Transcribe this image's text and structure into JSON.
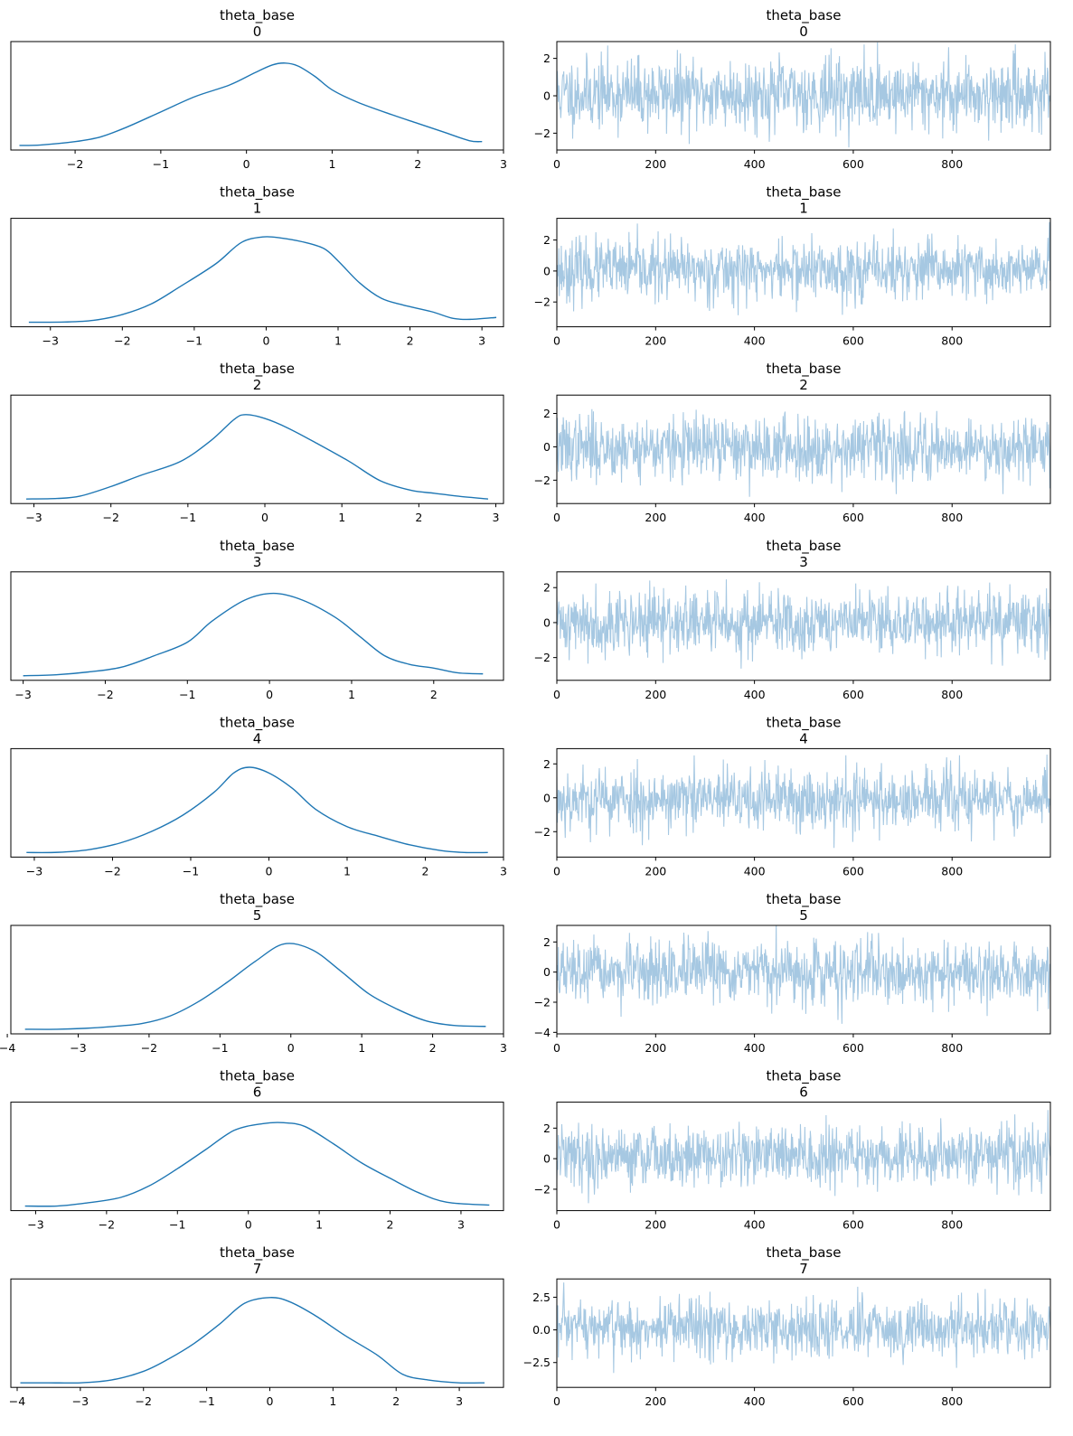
{
  "figure": {
    "kind": "trace-plot",
    "kde_color": "#1f77b4",
    "trace_color": "#a6c8e2",
    "axis_color": "#000000",
    "background": "#ffffff"
  },
  "chart_data": [
    {
      "type": "line",
      "variant": "kde",
      "title": "theta_base",
      "subtitle": "0",
      "xlim": [
        -2.75,
        3.0
      ],
      "xticks": [
        -2,
        -1,
        0,
        1,
        2,
        3
      ],
      "x": [
        -2.65,
        -2.4,
        -2.0,
        -1.7,
        -1.4,
        -1.0,
        -0.6,
        -0.2,
        0.1,
        0.3,
        0.45,
        0.6,
        0.8,
        1.0,
        1.3,
        1.7,
        2.0,
        2.3,
        2.6,
        2.75
      ],
      "y": [
        0.01,
        0.015,
        0.05,
        0.1,
        0.2,
        0.36,
        0.52,
        0.64,
        0.77,
        0.85,
        0.87,
        0.84,
        0.73,
        0.59,
        0.46,
        0.33,
        0.24,
        0.15,
        0.06,
        0.05
      ]
    },
    {
      "type": "line",
      "variant": "trace",
      "title": "theta_base",
      "subtitle": "0",
      "xlim": [
        0,
        999
      ],
      "xticks": [
        0,
        200,
        400,
        600,
        800
      ],
      "ylim": [
        -2.9,
        2.9
      ],
      "yticks": [
        -2,
        0,
        2
      ],
      "ytick_labels": [
        "−2",
        "0",
        "2"
      ],
      "n": 1000,
      "seed": 11,
      "scale": 0.95,
      "mean": 0.1
    },
    {
      "type": "line",
      "variant": "kde",
      "title": "theta_base",
      "subtitle": "1",
      "xlim": [
        -3.55,
        3.3
      ],
      "xticks": [
        -3,
        -2,
        -1,
        0,
        1,
        2,
        3
      ],
      "x": [
        -3.3,
        -2.8,
        -2.4,
        -2.0,
        -1.6,
        -1.2,
        -0.7,
        -0.35,
        -0.05,
        0.2,
        0.5,
        0.8,
        1.0,
        1.3,
        1.6,
        1.9,
        2.3,
        2.6,
        2.85,
        3.2
      ],
      "y": [
        0.01,
        0.012,
        0.03,
        0.09,
        0.2,
        0.38,
        0.62,
        0.84,
        0.9,
        0.89,
        0.85,
        0.78,
        0.65,
        0.42,
        0.26,
        0.19,
        0.12,
        0.05,
        0.04,
        0.06
      ]
    },
    {
      "type": "line",
      "variant": "trace",
      "title": "theta_base",
      "subtitle": "1",
      "xlim": [
        0,
        999
      ],
      "xticks": [
        0,
        200,
        400,
        600,
        800
      ],
      "ylim": [
        -3.6,
        3.4
      ],
      "yticks": [
        -2,
        0,
        2
      ],
      "ytick_labels": [
        "−2",
        "0",
        "2"
      ],
      "n": 1000,
      "seed": 23,
      "scale": 0.98,
      "mean": 0.05
    },
    {
      "type": "line",
      "variant": "kde",
      "title": "theta_base",
      "subtitle": "2",
      "xlim": [
        -3.3,
        3.1
      ],
      "xticks": [
        -3,
        -2,
        -1,
        0,
        1,
        2,
        3
      ],
      "x": [
        -3.1,
        -2.7,
        -2.4,
        -2.0,
        -1.6,
        -1.1,
        -0.7,
        -0.4,
        -0.25,
        0.0,
        0.3,
        0.7,
        1.1,
        1.5,
        1.9,
        2.2,
        2.5,
        2.9
      ],
      "y": [
        0.01,
        0.015,
        0.04,
        0.14,
        0.26,
        0.4,
        0.62,
        0.84,
        0.89,
        0.85,
        0.75,
        0.58,
        0.4,
        0.2,
        0.1,
        0.07,
        0.04,
        0.01
      ]
    },
    {
      "type": "line",
      "variant": "trace",
      "title": "theta_base",
      "subtitle": "2",
      "xlim": [
        0,
        999
      ],
      "xticks": [
        0,
        200,
        400,
        600,
        800
      ],
      "ylim": [
        -3.4,
        3.1
      ],
      "yticks": [
        -2,
        0,
        2
      ],
      "ytick_labels": [
        "−2",
        "0",
        "2"
      ],
      "n": 1000,
      "seed": 37,
      "scale": 0.95,
      "mean": -0.05
    },
    {
      "type": "line",
      "variant": "kde",
      "title": "theta_base",
      "subtitle": "3",
      "xlim": [
        -3.15,
        2.85
      ],
      "xticks": [
        -3,
        -2,
        -1,
        0,
        1,
        2
      ],
      "x": [
        -3.0,
        -2.6,
        -2.2,
        -1.8,
        -1.4,
        -1.0,
        -0.7,
        -0.3,
        0.05,
        0.4,
        0.8,
        1.1,
        1.4,
        1.7,
        2.0,
        2.3,
        2.6
      ],
      "y": [
        0.01,
        0.02,
        0.05,
        0.1,
        0.22,
        0.36,
        0.58,
        0.8,
        0.87,
        0.8,
        0.62,
        0.42,
        0.22,
        0.13,
        0.09,
        0.04,
        0.03
      ]
    },
    {
      "type": "line",
      "variant": "trace",
      "title": "theta_base",
      "subtitle": "3",
      "xlim": [
        0,
        999
      ],
      "xticks": [
        0,
        200,
        400,
        600,
        800
      ],
      "ylim": [
        -3.3,
        2.9
      ],
      "yticks": [
        -2,
        0,
        2
      ],
      "ytick_labels": [
        "−2",
        "0",
        "2"
      ],
      "n": 1000,
      "seed": 41,
      "scale": 0.92,
      "mean": 0.0
    },
    {
      "type": "line",
      "variant": "kde",
      "title": "theta_base",
      "subtitle": "4",
      "xlim": [
        -3.3,
        3.0
      ],
      "xticks": [
        -3,
        -2,
        -1,
        0,
        1,
        2,
        3
      ],
      "x": [
        -3.1,
        -2.7,
        -2.3,
        -1.9,
        -1.5,
        -1.1,
        -0.7,
        -0.45,
        -0.25,
        0.0,
        0.3,
        0.6,
        1.0,
        1.4,
        1.8,
        2.2,
        2.5,
        2.8
      ],
      "y": [
        0.01,
        0.012,
        0.04,
        0.11,
        0.23,
        0.4,
        0.64,
        0.84,
        0.9,
        0.84,
        0.68,
        0.46,
        0.28,
        0.18,
        0.09,
        0.03,
        0.01,
        0.01
      ]
    },
    {
      "type": "line",
      "variant": "trace",
      "title": "theta_base",
      "subtitle": "4",
      "xlim": [
        0,
        999
      ],
      "xticks": [
        0,
        200,
        400,
        600,
        800
      ],
      "ylim": [
        -3.5,
        2.9
      ],
      "yticks": [
        -2,
        0,
        2
      ],
      "ytick_labels": [
        "−2",
        "0",
        "2"
      ],
      "n": 1000,
      "seed": 53,
      "scale": 0.95,
      "mean": -0.1
    },
    {
      "type": "line",
      "variant": "kde",
      "title": "theta_base",
      "subtitle": "5",
      "xlim": [
        -3.95,
        3.0
      ],
      "xticks": [
        -4,
        -3,
        -2,
        -1,
        0,
        1,
        2,
        3
      ],
      "x": [
        -3.75,
        -3.3,
        -2.9,
        -2.5,
        -2.1,
        -1.7,
        -1.3,
        -0.9,
        -0.5,
        -0.1,
        0.3,
        0.7,
        1.1,
        1.5,
        1.9,
        2.3,
        2.75
      ],
      "y": [
        0.01,
        0.01,
        0.02,
        0.04,
        0.07,
        0.15,
        0.3,
        0.5,
        0.72,
        0.9,
        0.84,
        0.62,
        0.38,
        0.22,
        0.1,
        0.05,
        0.04
      ]
    },
    {
      "type": "line",
      "variant": "trace",
      "title": "theta_base",
      "subtitle": "5",
      "xlim": [
        0,
        999
      ],
      "xticks": [
        0,
        200,
        400,
        600,
        800
      ],
      "ylim": [
        -4.1,
        3.1
      ],
      "yticks": [
        -4,
        -2,
        0,
        2
      ],
      "ytick_labels": [
        "−4",
        "−2",
        "0",
        "2"
      ],
      "n": 1000,
      "seed": 67,
      "scale": 1.0,
      "mean": -0.05
    },
    {
      "type": "line",
      "variant": "kde",
      "title": "theta_base",
      "subtitle": "6",
      "xlim": [
        -3.35,
        3.6
      ],
      "xticks": [
        -3,
        -2,
        -1,
        0,
        1,
        2,
        3
      ],
      "x": [
        -3.15,
        -2.7,
        -2.3,
        -1.8,
        -1.4,
        -1.0,
        -0.6,
        -0.2,
        0.2,
        0.5,
        0.8,
        1.2,
        1.6,
        2.0,
        2.4,
        2.8,
        3.4
      ],
      "y": [
        0.01,
        0.01,
        0.04,
        0.1,
        0.22,
        0.4,
        0.6,
        0.8,
        0.87,
        0.88,
        0.84,
        0.66,
        0.46,
        0.3,
        0.15,
        0.05,
        0.02
      ]
    },
    {
      "type": "line",
      "variant": "trace",
      "title": "theta_base",
      "subtitle": "6",
      "xlim": [
        0,
        999
      ],
      "xticks": [
        0,
        200,
        400,
        600,
        800
      ],
      "ylim": [
        -3.4,
        3.7
      ],
      "yticks": [
        -2,
        0,
        2
      ],
      "ytick_labels": [
        "−2",
        "0",
        "2"
      ],
      "n": 1000,
      "seed": 79,
      "scale": 1.0,
      "mean": 0.2
    },
    {
      "type": "line",
      "variant": "kde",
      "title": "theta_base",
      "subtitle": "7",
      "xlim": [
        -4.1,
        3.7
      ],
      "xticks": [
        -4,
        -3,
        -2,
        -1,
        0,
        1,
        2,
        3
      ],
      "x": [
        -3.95,
        -3.5,
        -3.0,
        -2.5,
        -2.0,
        -1.6,
        -1.2,
        -0.8,
        -0.4,
        0.0,
        0.3,
        0.7,
        1.2,
        1.7,
        2.1,
        2.5,
        3.0,
        3.4
      ],
      "y": [
        0.01,
        0.01,
        0.01,
        0.04,
        0.13,
        0.26,
        0.42,
        0.62,
        0.84,
        0.9,
        0.86,
        0.72,
        0.5,
        0.3,
        0.1,
        0.04,
        0.01,
        0.01
      ]
    },
    {
      "type": "line",
      "variant": "trace",
      "title": "theta_base",
      "subtitle": "7",
      "xlim": [
        0,
        999
      ],
      "xticks": [
        0,
        200,
        400,
        600,
        800
      ],
      "ylim": [
        -4.4,
        3.9
      ],
      "yticks": [
        -2.5,
        0,
        2.5
      ],
      "ytick_labels": [
        "−2.5",
        "0.0",
        "2.5"
      ],
      "n": 1000,
      "seed": 97,
      "scale": 1.15,
      "mean": 0.1
    }
  ]
}
